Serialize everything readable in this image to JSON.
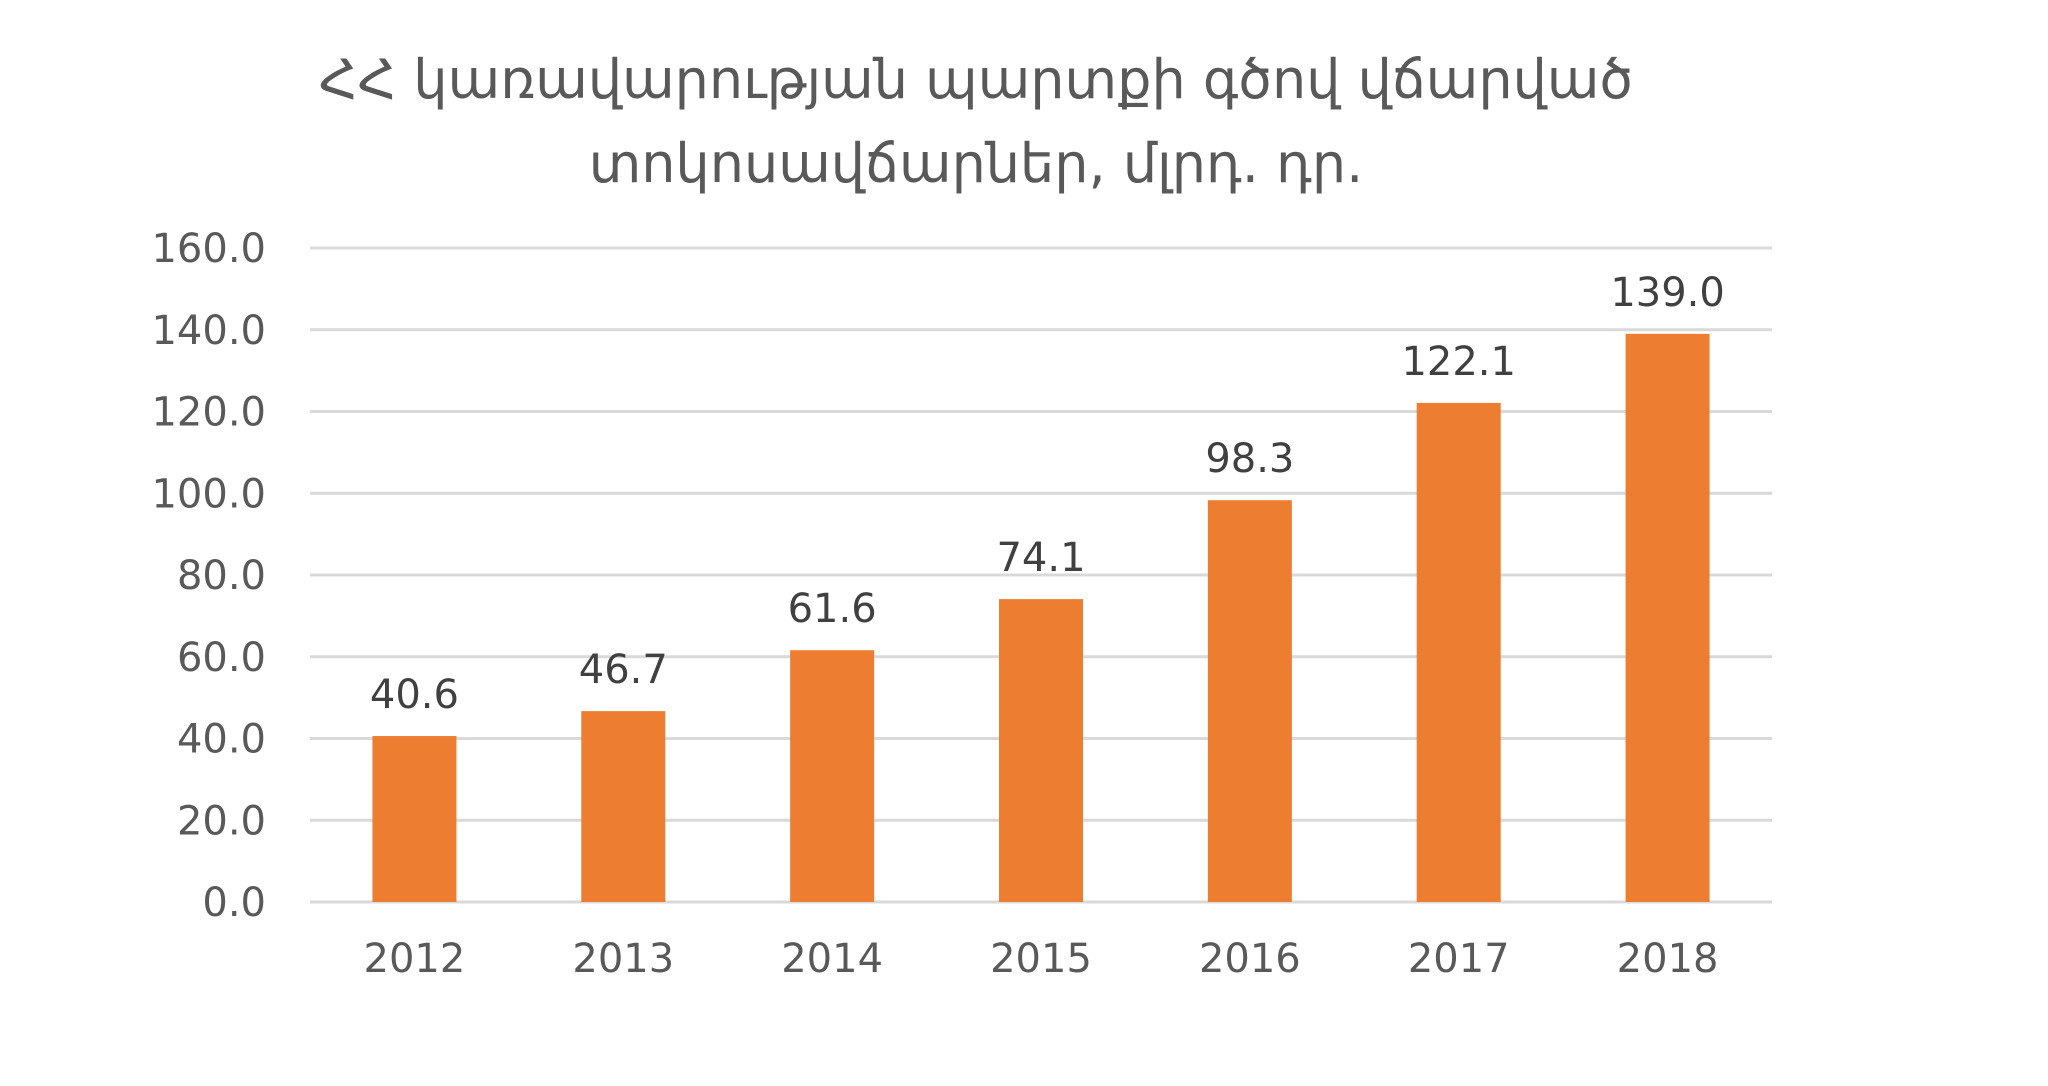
{
  "chart_data": {
    "type": "bar",
    "title_lines": [
      "ՀՀ կառավարության պարտքի գծով վճարված",
      "տոկոսավճարներ, մլրդ. դր."
    ],
    "categories": [
      "2012",
      "2013",
      "2014",
      "2015",
      "2016",
      "2017",
      "2018"
    ],
    "values": [
      40.6,
      46.7,
      61.6,
      74.1,
      98.3,
      122.1,
      139.0
    ],
    "value_labels": [
      "40.6",
      "46.7",
      "61.6",
      "74.1",
      "98.3",
      "122.1",
      "139.0"
    ],
    "ylim": [
      0,
      160
    ],
    "yticks": [
      "0.0",
      "20.0",
      "40.0",
      "60.0",
      "80.0",
      "100.0",
      "120.0",
      "140.0",
      "160.0"
    ],
    "ytick_values": [
      0,
      20,
      40,
      60,
      80,
      100,
      120,
      140,
      160
    ],
    "grid": true,
    "legend": "none",
    "bar_color": "#ed7d31"
  }
}
